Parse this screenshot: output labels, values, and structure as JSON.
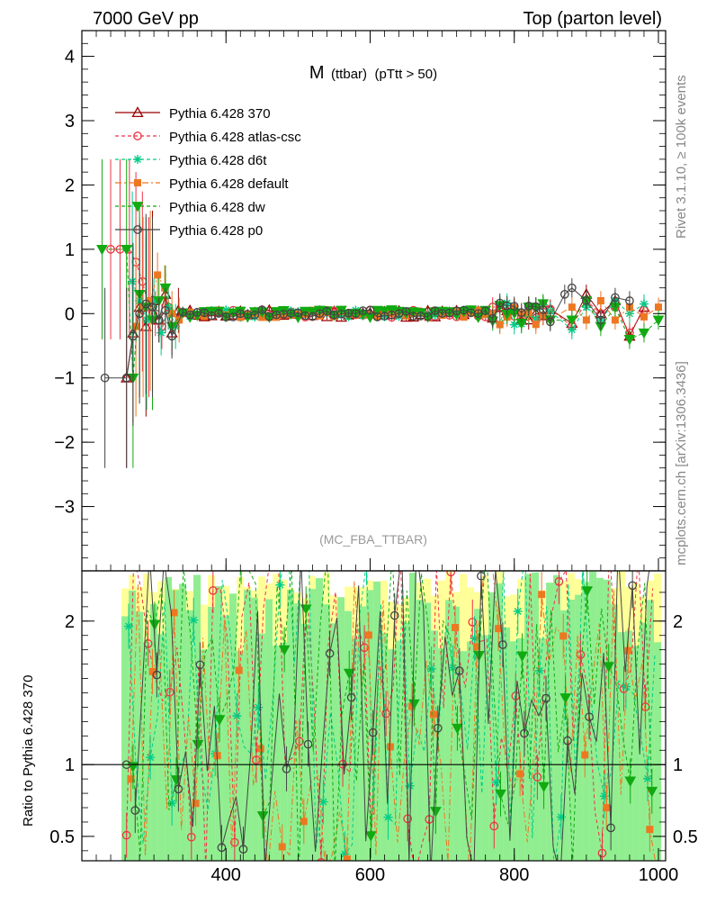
{
  "header": {
    "left": "7000 GeV pp",
    "right": "Top (parton level)"
  },
  "side_labels": {
    "rivet": "Rivet 3.1.10, ≥ 100k events",
    "mcplots": "mcplots.cern.ch [arXiv:1306.3436]"
  },
  "chart_data": [
    {
      "panel": "main",
      "type": "scatter",
      "title_main": "M",
      "title_sub": "(ttbar)",
      "title_cut": "(pTtt > 50)",
      "watermark": "(MC_FBA_TTBAR)",
      "xlim": [
        200,
        1010
      ],
      "ylim": [
        -4,
        4.4
      ],
      "yticks": [
        -3,
        -2,
        -1,
        0,
        1,
        2,
        3,
        4
      ],
      "xticks": [
        400,
        600,
        800,
        1000
      ],
      "legend_position": "top-left",
      "series": [
        {
          "name": "Pythia 6.428 370",
          "color": "#990000",
          "marker": "triangle",
          "dash": "solid",
          "x": [
            262,
            271,
            280,
            289,
            298,
            307,
            316,
            325,
            334,
            600,
            880,
            900,
            920,
            940,
            960,
            980
          ],
          "y": [
            -1.0,
            -0.3,
            0.1,
            -0.2,
            0.2,
            -0.1,
            0.3,
            -0.3,
            0.05,
            0.0,
            -0.15,
            0.3,
            0.0,
            0.2,
            -0.35,
            0.1
          ]
        },
        {
          "name": "Pythia 6.428 atlas-csc",
          "color": "#ee3344",
          "marker": "circle",
          "dash": "dashed",
          "x": [
            240,
            253,
            266,
            275,
            284,
            293,
            302,
            311,
            320,
            350,
            600,
            880,
            900,
            920,
            940,
            960,
            980
          ],
          "y": [
            1.0,
            1.0,
            1.0,
            0.8,
            0.5,
            0.1,
            0.0,
            -0.2,
            0.1,
            0.2,
            0.0,
            -0.2,
            0.2,
            0.0,
            0.1,
            -0.3,
            0.05
          ]
        },
        {
          "name": "Pythia 6.428 d6t",
          "color": "#00cc88",
          "marker": "star",
          "dash": "dashed",
          "x": [
            270,
            280,
            290,
            300,
            310,
            320,
            330,
            600,
            880,
            900,
            920,
            940,
            960,
            980
          ],
          "y": [
            0.5,
            0.2,
            -0.1,
            0.2,
            -0.3,
            0.1,
            -0.2,
            0.02,
            -0.25,
            0.1,
            -0.1,
            0.2,
            0.0,
            0.15
          ]
        },
        {
          "name": "Pythia 6.428 default",
          "color": "#ee7722",
          "marker": "square",
          "dash": "dashdot",
          "x": [
            275,
            285,
            295,
            305,
            315,
            325,
            335,
            600,
            880,
            900,
            920,
            940,
            960,
            980,
            1000
          ],
          "y": [
            -0.2,
            0.1,
            0.2,
            0.6,
            0.4,
            0.0,
            -0.1,
            -0.02,
            0.1,
            -0.1,
            0.2,
            -0.1,
            0.1,
            -0.05,
            0.1
          ]
        },
        {
          "name": "Pythia 6.428 dw",
          "color": "#11aa11",
          "marker": "triangle-down",
          "dash": "dashed",
          "x": [
            228,
            262,
            271,
            280,
            289,
            298,
            307,
            316,
            325,
            600,
            880,
            900,
            920,
            940,
            960,
            980,
            1000
          ],
          "y": [
            1.0,
            1.0,
            -1.0,
            0.3,
            0.1,
            -0.1,
            0.2,
            0.4,
            -0.2,
            0.0,
            -0.1,
            0.2,
            -0.2,
            0.1,
            -0.4,
            -0.3,
            -0.1
          ]
        },
        {
          "name": "Pythia 6.428 p0",
          "color": "#444444",
          "marker": "circle",
          "dash": "solid",
          "x": [
            232,
            262,
            271,
            280,
            289,
            298,
            307,
            316,
            325,
            600,
            870,
            880,
            900,
            920,
            940,
            960
          ],
          "y": [
            -1.0,
            -1.0,
            -0.35,
            0.0,
            0.15,
            0.1,
            -0.1,
            0.05,
            -0.35,
            0.0,
            0.3,
            0.4,
            0.2,
            -0.1,
            0.25,
            0.2
          ]
        }
      ]
    },
    {
      "panel": "ratio",
      "type": "line",
      "ylabel": "Ratio to Pythia 6.428 370",
      "xlim": [
        200,
        1010
      ],
      "ylim": [
        0.33,
        2.35
      ],
      "yticks": [
        0.5,
        1,
        2
      ],
      "xticks": [
        400,
        600,
        800,
        1000
      ],
      "reference": 1,
      "band_xrange": [
        255,
        1000
      ]
    }
  ]
}
